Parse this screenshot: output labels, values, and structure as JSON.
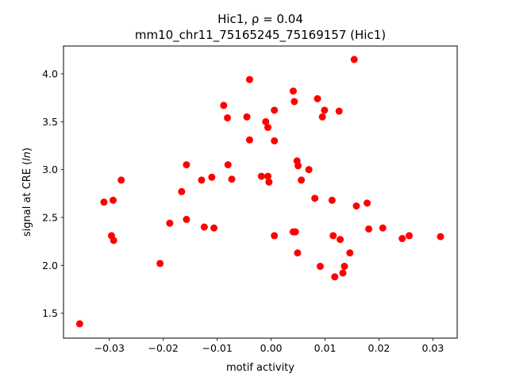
{
  "chart_data": {
    "type": "scatter",
    "title": "Hic1, ρ = 0.04",
    "title_line2": "mm10_chr11_75165245_75169157 (Hic1)",
    "xlabel": "motif activity",
    "ylabel_prefix": "signal at CRE (",
    "ylabel_italic": "ln",
    "ylabel_suffix": ")",
    "xlim": [
      -0.0385,
      0.0345
    ],
    "ylim": [
      1.24,
      4.29
    ],
    "x_ticks": [
      -0.03,
      -0.02,
      -0.01,
      0.0,
      0.01,
      0.02,
      0.03
    ],
    "x_tick_labels": [
      "−0.03",
      "−0.02",
      "−0.01",
      "0.00",
      "0.01",
      "0.02",
      "0.03"
    ],
    "y_ticks": [
      1.5,
      2.0,
      2.5,
      3.0,
      3.5,
      4.0
    ],
    "y_tick_labels": [
      "1.5",
      "2.0",
      "2.5",
      "3.0",
      "3.5",
      "4.0"
    ],
    "grid": false,
    "marker_color": "#ff0000",
    "points": [
      {
        "x": -0.0355,
        "y": 1.39
      },
      {
        "x": -0.031,
        "y": 2.66
      },
      {
        "x": -0.0293,
        "y": 2.68
      },
      {
        "x": -0.0296,
        "y": 2.31
      },
      {
        "x": -0.0292,
        "y": 2.26
      },
      {
        "x": -0.0278,
        "y": 2.89
      },
      {
        "x": -0.0206,
        "y": 2.02
      },
      {
        "x": -0.0188,
        "y": 2.44
      },
      {
        "x": -0.0166,
        "y": 2.77
      },
      {
        "x": -0.0157,
        "y": 3.05
      },
      {
        "x": -0.0157,
        "y": 2.48
      },
      {
        "x": -0.0129,
        "y": 2.89
      },
      {
        "x": -0.0124,
        "y": 2.4
      },
      {
        "x": -0.011,
        "y": 2.92
      },
      {
        "x": -0.0106,
        "y": 2.39
      },
      {
        "x": -0.0088,
        "y": 3.67
      },
      {
        "x": -0.0081,
        "y": 3.54
      },
      {
        "x": -0.008,
        "y": 3.05
      },
      {
        "x": -0.0073,
        "y": 2.9
      },
      {
        "x": -0.0045,
        "y": 3.55
      },
      {
        "x": -0.004,
        "y": 3.94
      },
      {
        "x": -0.004,
        "y": 3.31
      },
      {
        "x": -0.0018,
        "y": 2.93
      },
      {
        "x": -0.001,
        "y": 3.5
      },
      {
        "x": -0.0006,
        "y": 3.44
      },
      {
        "x": -0.0006,
        "y": 2.93
      },
      {
        "x": -0.0004,
        "y": 2.87
      },
      {
        "x": 0.0006,
        "y": 3.62
      },
      {
        "x": 0.0006,
        "y": 3.3
      },
      {
        "x": 0.0006,
        "y": 2.31
      },
      {
        "x": 0.0041,
        "y": 3.82
      },
      {
        "x": 0.0043,
        "y": 3.71
      },
      {
        "x": 0.0041,
        "y": 2.35
      },
      {
        "x": 0.0045,
        "y": 2.35
      },
      {
        "x": 0.0048,
        "y": 3.09
      },
      {
        "x": 0.005,
        "y": 3.04
      },
      {
        "x": 0.0049,
        "y": 2.13
      },
      {
        "x": 0.0056,
        "y": 2.89
      },
      {
        "x": 0.007,
        "y": 3.0
      },
      {
        "x": 0.0081,
        "y": 2.7
      },
      {
        "x": 0.0086,
        "y": 3.74
      },
      {
        "x": 0.0091,
        "y": 1.99
      },
      {
        "x": 0.0095,
        "y": 3.55
      },
      {
        "x": 0.0099,
        "y": 3.62
      },
      {
        "x": 0.0113,
        "y": 2.68
      },
      {
        "x": 0.0115,
        "y": 2.31
      },
      {
        "x": 0.0118,
        "y": 1.88
      },
      {
        "x": 0.0126,
        "y": 3.61
      },
      {
        "x": 0.0128,
        "y": 2.27
      },
      {
        "x": 0.0133,
        "y": 1.92
      },
      {
        "x": 0.0136,
        "y": 1.99
      },
      {
        "x": 0.0146,
        "y": 2.13
      },
      {
        "x": 0.0154,
        "y": 4.15
      },
      {
        "x": 0.0158,
        "y": 2.62
      },
      {
        "x": 0.0178,
        "y": 2.65
      },
      {
        "x": 0.0181,
        "y": 2.38
      },
      {
        "x": 0.0207,
        "y": 2.39
      },
      {
        "x": 0.0243,
        "y": 2.28
      },
      {
        "x": 0.0256,
        "y": 2.31
      },
      {
        "x": 0.0314,
        "y": 2.3
      }
    ]
  }
}
